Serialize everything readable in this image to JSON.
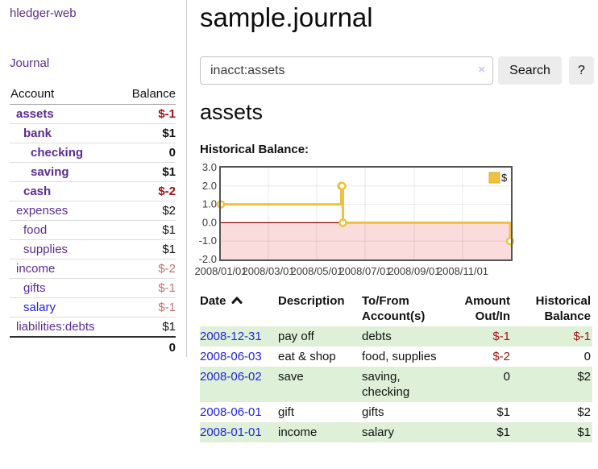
{
  "colors": {
    "purple": "#5b2c93",
    "blue": "#2424d9",
    "neg_strong": "#a01414",
    "neg_light": "#c17370",
    "stripe_green": "#dff0d8",
    "chart_gold": "#edc240"
  },
  "app": {
    "title": "hledger-web"
  },
  "sidebar": {
    "journal_link": "Journal",
    "accounts": {
      "account_header": "Account",
      "balance_header": "Balance",
      "rows": [
        {
          "name": "assets",
          "depth": 1,
          "bold": true,
          "balance": "$-1",
          "neg": "strong"
        },
        {
          "name": "bank",
          "depth": 2,
          "bold": true,
          "balance": "$1"
        },
        {
          "name": "checking",
          "depth": 3,
          "bold": true,
          "balance": "0"
        },
        {
          "name": "saving",
          "depth": 3,
          "bold": true,
          "balance": "$1"
        },
        {
          "name": "cash",
          "depth": 2,
          "bold": true,
          "balance": "$-2",
          "neg": "strong"
        },
        {
          "name": "expenses",
          "depth": 1,
          "bold": false,
          "balance": "$2"
        },
        {
          "name": "food",
          "depth": 2,
          "bold": false,
          "balance": "$1"
        },
        {
          "name": "supplies",
          "depth": 2,
          "bold": false,
          "balance": "$1"
        },
        {
          "name": "income",
          "depth": 1,
          "bold": false,
          "balance": "$-2",
          "neg": "light"
        },
        {
          "name": "gifts",
          "depth": 2,
          "bold": false,
          "balance": "$-1",
          "neg": "light"
        },
        {
          "name": "salary",
          "depth": 2,
          "bold": false,
          "balance": "$-1",
          "neg": "light",
          "link": "blue"
        },
        {
          "name": "liabilities:debts",
          "depth": 1,
          "bold": false,
          "balance": "$1"
        }
      ],
      "total": "0"
    }
  },
  "header": {
    "title": "sample.journal"
  },
  "search": {
    "value": "inacct:assets",
    "clear_icon": "×",
    "button_label": "Search",
    "help_label": "?"
  },
  "account_page": {
    "heading": "assets",
    "chart_label": "Historical Balance:"
  },
  "chart_data": {
    "type": "line",
    "steps": true,
    "title": "Historical Balance",
    "series": [
      {
        "name": "$",
        "color": "#edc240",
        "points": [
          [
            "2008-01-01",
            1
          ],
          [
            "2008-06-01",
            2
          ],
          [
            "2008-06-02",
            2
          ],
          [
            "2008-06-03",
            0
          ],
          [
            "2008-12-31",
            -1
          ]
        ]
      }
    ],
    "ylim": [
      -2,
      3
    ],
    "yticks": [
      3,
      2,
      1,
      0,
      -1,
      -2
    ],
    "xrange": [
      "2008-01-01",
      "2009-01-01"
    ],
    "xticks": [
      {
        "label": "2008/01/01",
        "date": "2008-01-01"
      },
      {
        "label": "2008/03/01",
        "date": "2008-03-01"
      },
      {
        "label": "2008/05/01",
        "date": "2008-05-01"
      },
      {
        "label": "2008/07/01",
        "date": "2008-07-01"
      },
      {
        "label": "2008/09/01",
        "date": "2008-09-01"
      },
      {
        "label": "2008/11/01",
        "date": "2008-11-01"
      }
    ],
    "legend_position": "top-right",
    "grid": true,
    "negative_fill": "#fbdcdc",
    "zero_line_color": "#8b0000"
  },
  "register": {
    "columns": [
      {
        "lines": [
          "Date"
        ],
        "sorted": true,
        "sort_icon": "chevron-up"
      },
      {
        "lines": [
          "Description"
        ]
      },
      {
        "lines": [
          "To/From",
          "Account(s)"
        ]
      },
      {
        "lines": [
          "Amount",
          "Out/In"
        ],
        "align": "right"
      },
      {
        "lines": [
          "Historical",
          "Balance"
        ],
        "align": "right"
      }
    ],
    "rows": [
      {
        "date": "2008-12-31",
        "description": "pay off",
        "accounts": "debts",
        "amount": "$-1",
        "amount_negative": true,
        "balance": "$-1",
        "balance_negative": true
      },
      {
        "date": "2008-06-03",
        "description": "eat & shop",
        "accounts": "food, supplies",
        "amount": "$-2",
        "amount_negative": true,
        "balance": "0",
        "balance_negative": false
      },
      {
        "date": "2008-06-02",
        "description": "save",
        "accounts": "saving, checking",
        "amount": "0",
        "amount_negative": false,
        "balance": "$2",
        "balance_negative": false
      },
      {
        "date": "2008-06-01",
        "description": "gift",
        "accounts": "gifts",
        "amount": "$1",
        "amount_negative": false,
        "balance": "$2",
        "balance_negative": false
      },
      {
        "date": "2008-01-01",
        "description": "income",
        "accounts": "salary",
        "amount": "$1",
        "amount_negative": false,
        "balance": "$1",
        "balance_negative": false
      }
    ]
  }
}
